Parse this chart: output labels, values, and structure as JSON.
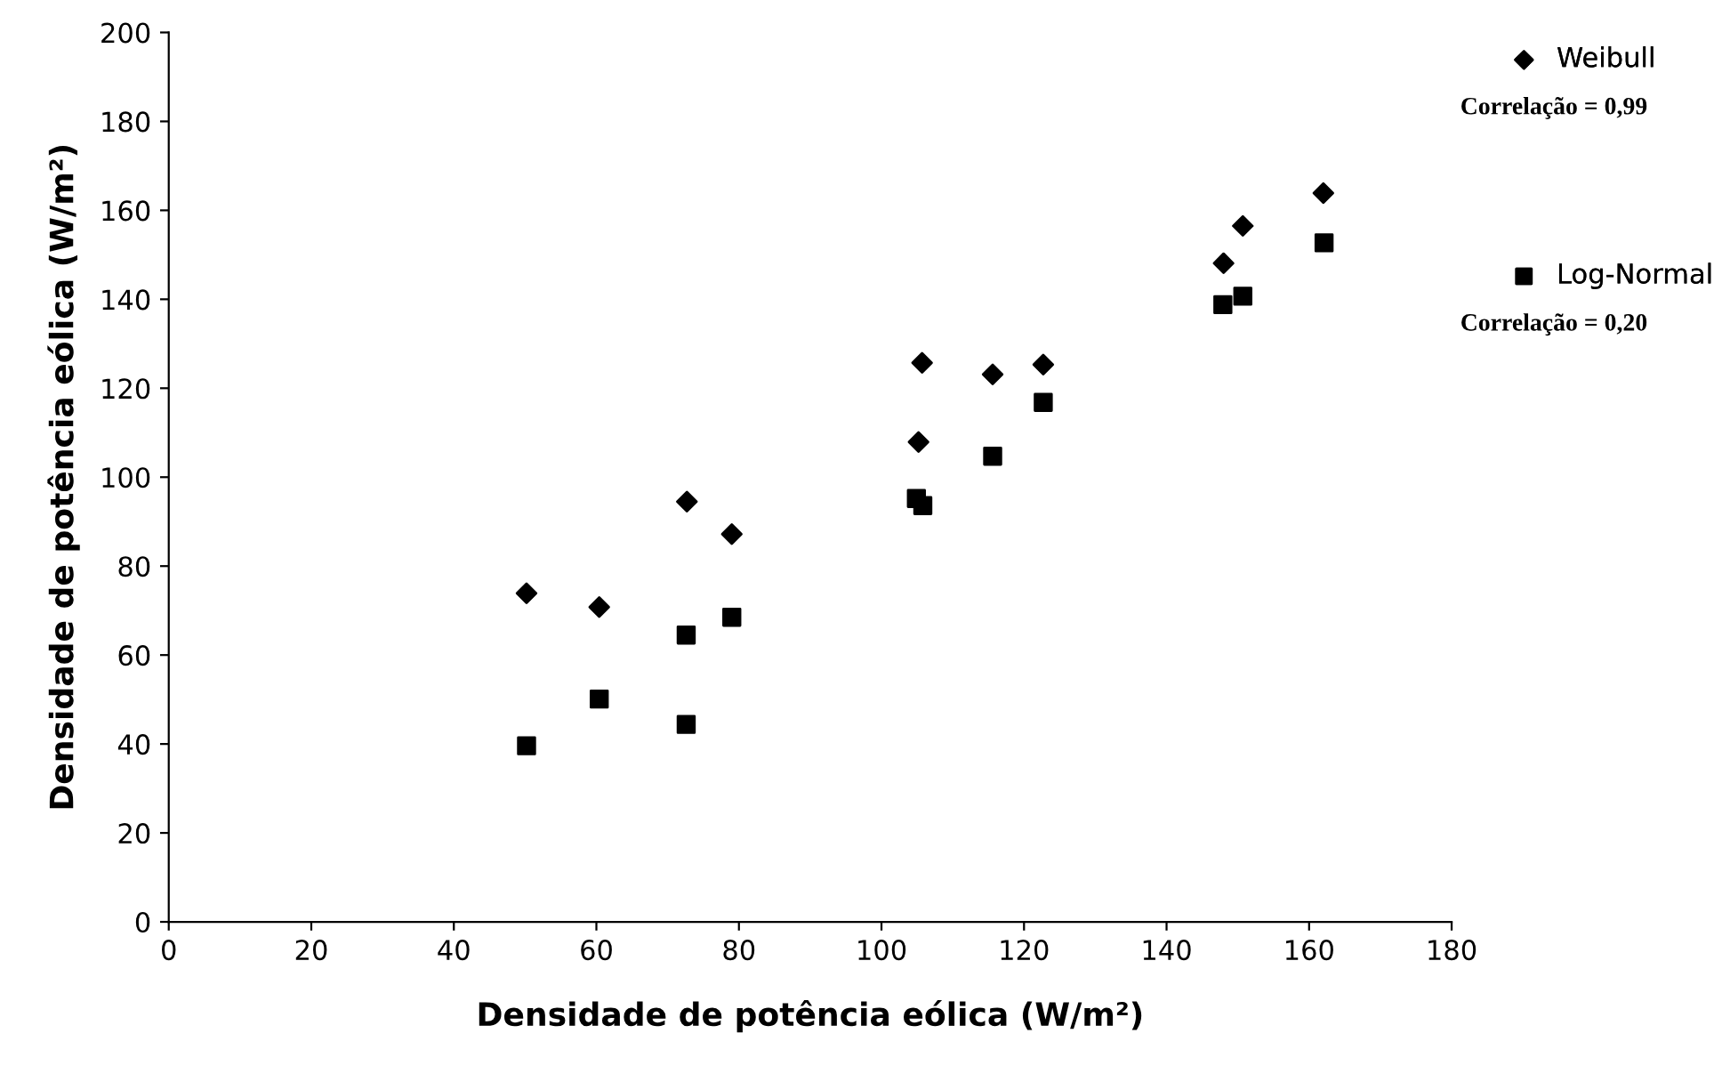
{
  "chart_data": {
    "type": "scatter",
    "xlabel": "Densidade de potência eólica (W/m²)",
    "ylabel": "Densidade de potência eólica (W/m²)",
    "series": [
      {
        "name": "Weibull",
        "color": "#000000",
        "marker": "diamond",
        "x": [
          50.2,
          60.4,
          72.7,
          79.0,
          105.2,
          105.7,
          115.6,
          122.7,
          148.0,
          150.7,
          162.0
        ],
        "values": [
          73.9,
          70.8,
          94.5,
          87.2,
          107.9,
          125.7,
          123.1,
          125.3,
          148.1,
          156.5,
          163.9
        ]
      },
      {
        "name": "Log-Normal",
        "color": "#000000",
        "marker": "square",
        "x": [
          50.2,
          60.4,
          72.6,
          72.6,
          79.0,
          104.9,
          105.8,
          115.6,
          122.7,
          147.9,
          150.7,
          162.1
        ],
        "values": [
          39.6,
          50.1,
          44.4,
          64.5,
          68.5,
          95.2,
          93.6,
          104.7,
          116.8,
          138.8,
          140.7,
          152.7
        ]
      }
    ],
    "annotations": [
      "Correlação = 0,99",
      "Correlação = 0,20"
    ],
    "xlim": [
      0,
      180
    ],
    "xticks": [
      0,
      20,
      40,
      60,
      80,
      100,
      120,
      140,
      160,
      180
    ],
    "ylim": [
      0,
      200
    ],
    "yticks": [
      0,
      20,
      40,
      60,
      80,
      100,
      120,
      140,
      160,
      180,
      200
    ],
    "grid": false,
    "legend": "right"
  }
}
